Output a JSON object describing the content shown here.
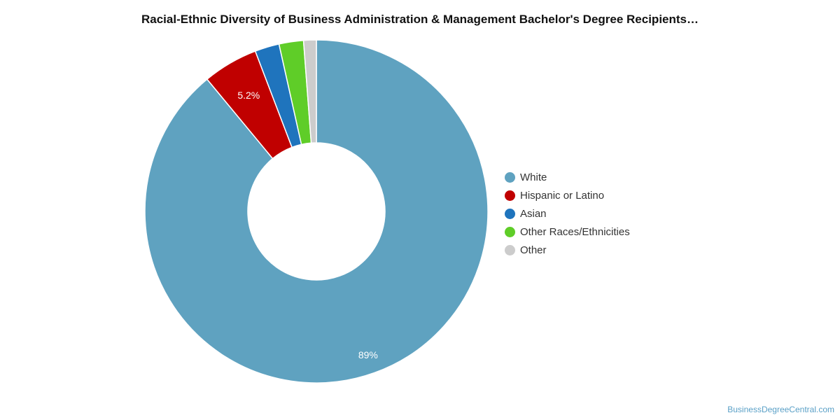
{
  "chart_data": {
    "type": "pie",
    "title": "Racial-Ethnic Diversity of Business Administration & Management Bachelor's Degree Recipients…",
    "categories": [
      "White",
      "Hispanic or Latino",
      "Asian",
      "Other Races/Ethnicities",
      "Other"
    ],
    "values": [
      89.0,
      5.2,
      2.3,
      2.3,
      1.2
    ],
    "data_labels": [
      "89%",
      "5.2%",
      "",
      "",
      ""
    ],
    "colors": [
      "#5fa2c0",
      "#c00000",
      "#1f74bd",
      "#5fcd28",
      "#cccccc"
    ],
    "donut": true,
    "start_angle_deg": 0,
    "direction": "clockwise",
    "legend_placement": "right"
  },
  "credit": "BusinessDegreeCentral.com"
}
